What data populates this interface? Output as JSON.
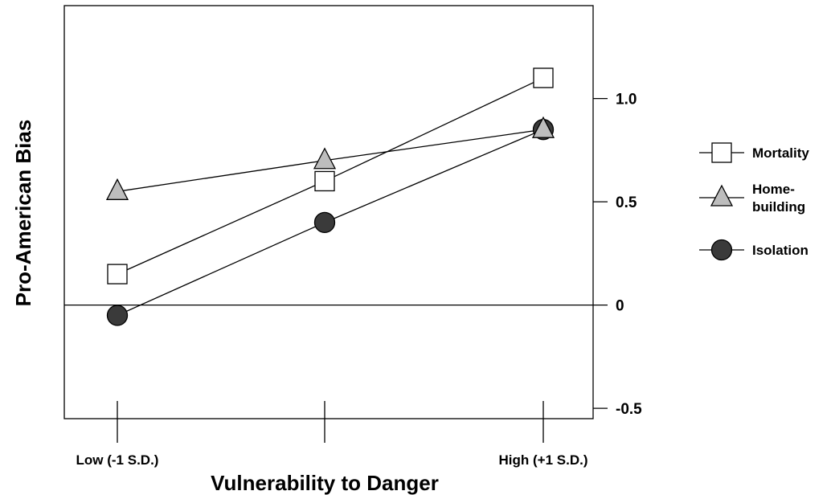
{
  "chart_data": {
    "type": "line",
    "xlabel": "Vulnerability to Danger",
    "ylabel": "Pro-American Bias",
    "categories": [
      "Low (-1 S.D.)",
      "",
      "High (+1 S.D.)"
    ],
    "ylim": [
      -0.55,
      1.45
    ],
    "y_ticks": [
      1.0,
      0.5,
      0,
      -0.5
    ],
    "y_tick_labels": [
      "1.0",
      "0.5",
      "0",
      "-0.5"
    ],
    "reference_line": 0,
    "legend_position": "right",
    "series": [
      {
        "name": "Mortality",
        "marker": "square",
        "values": [
          0.15,
          0.6,
          1.1
        ]
      },
      {
        "name": "Home-building",
        "name_lines": [
          "Home-",
          "building"
        ],
        "marker": "triangle",
        "values": [
          0.55,
          0.7,
          0.85
        ]
      },
      {
        "name": "Isolation",
        "marker": "circle",
        "values": [
          -0.05,
          0.4,
          0.85
        ]
      }
    ],
    "colors": {
      "square_fill": "#ffffff",
      "triangle_fill": "#bdbdbd",
      "circle_fill": "#3a3a3a",
      "line": "#000000"
    }
  }
}
